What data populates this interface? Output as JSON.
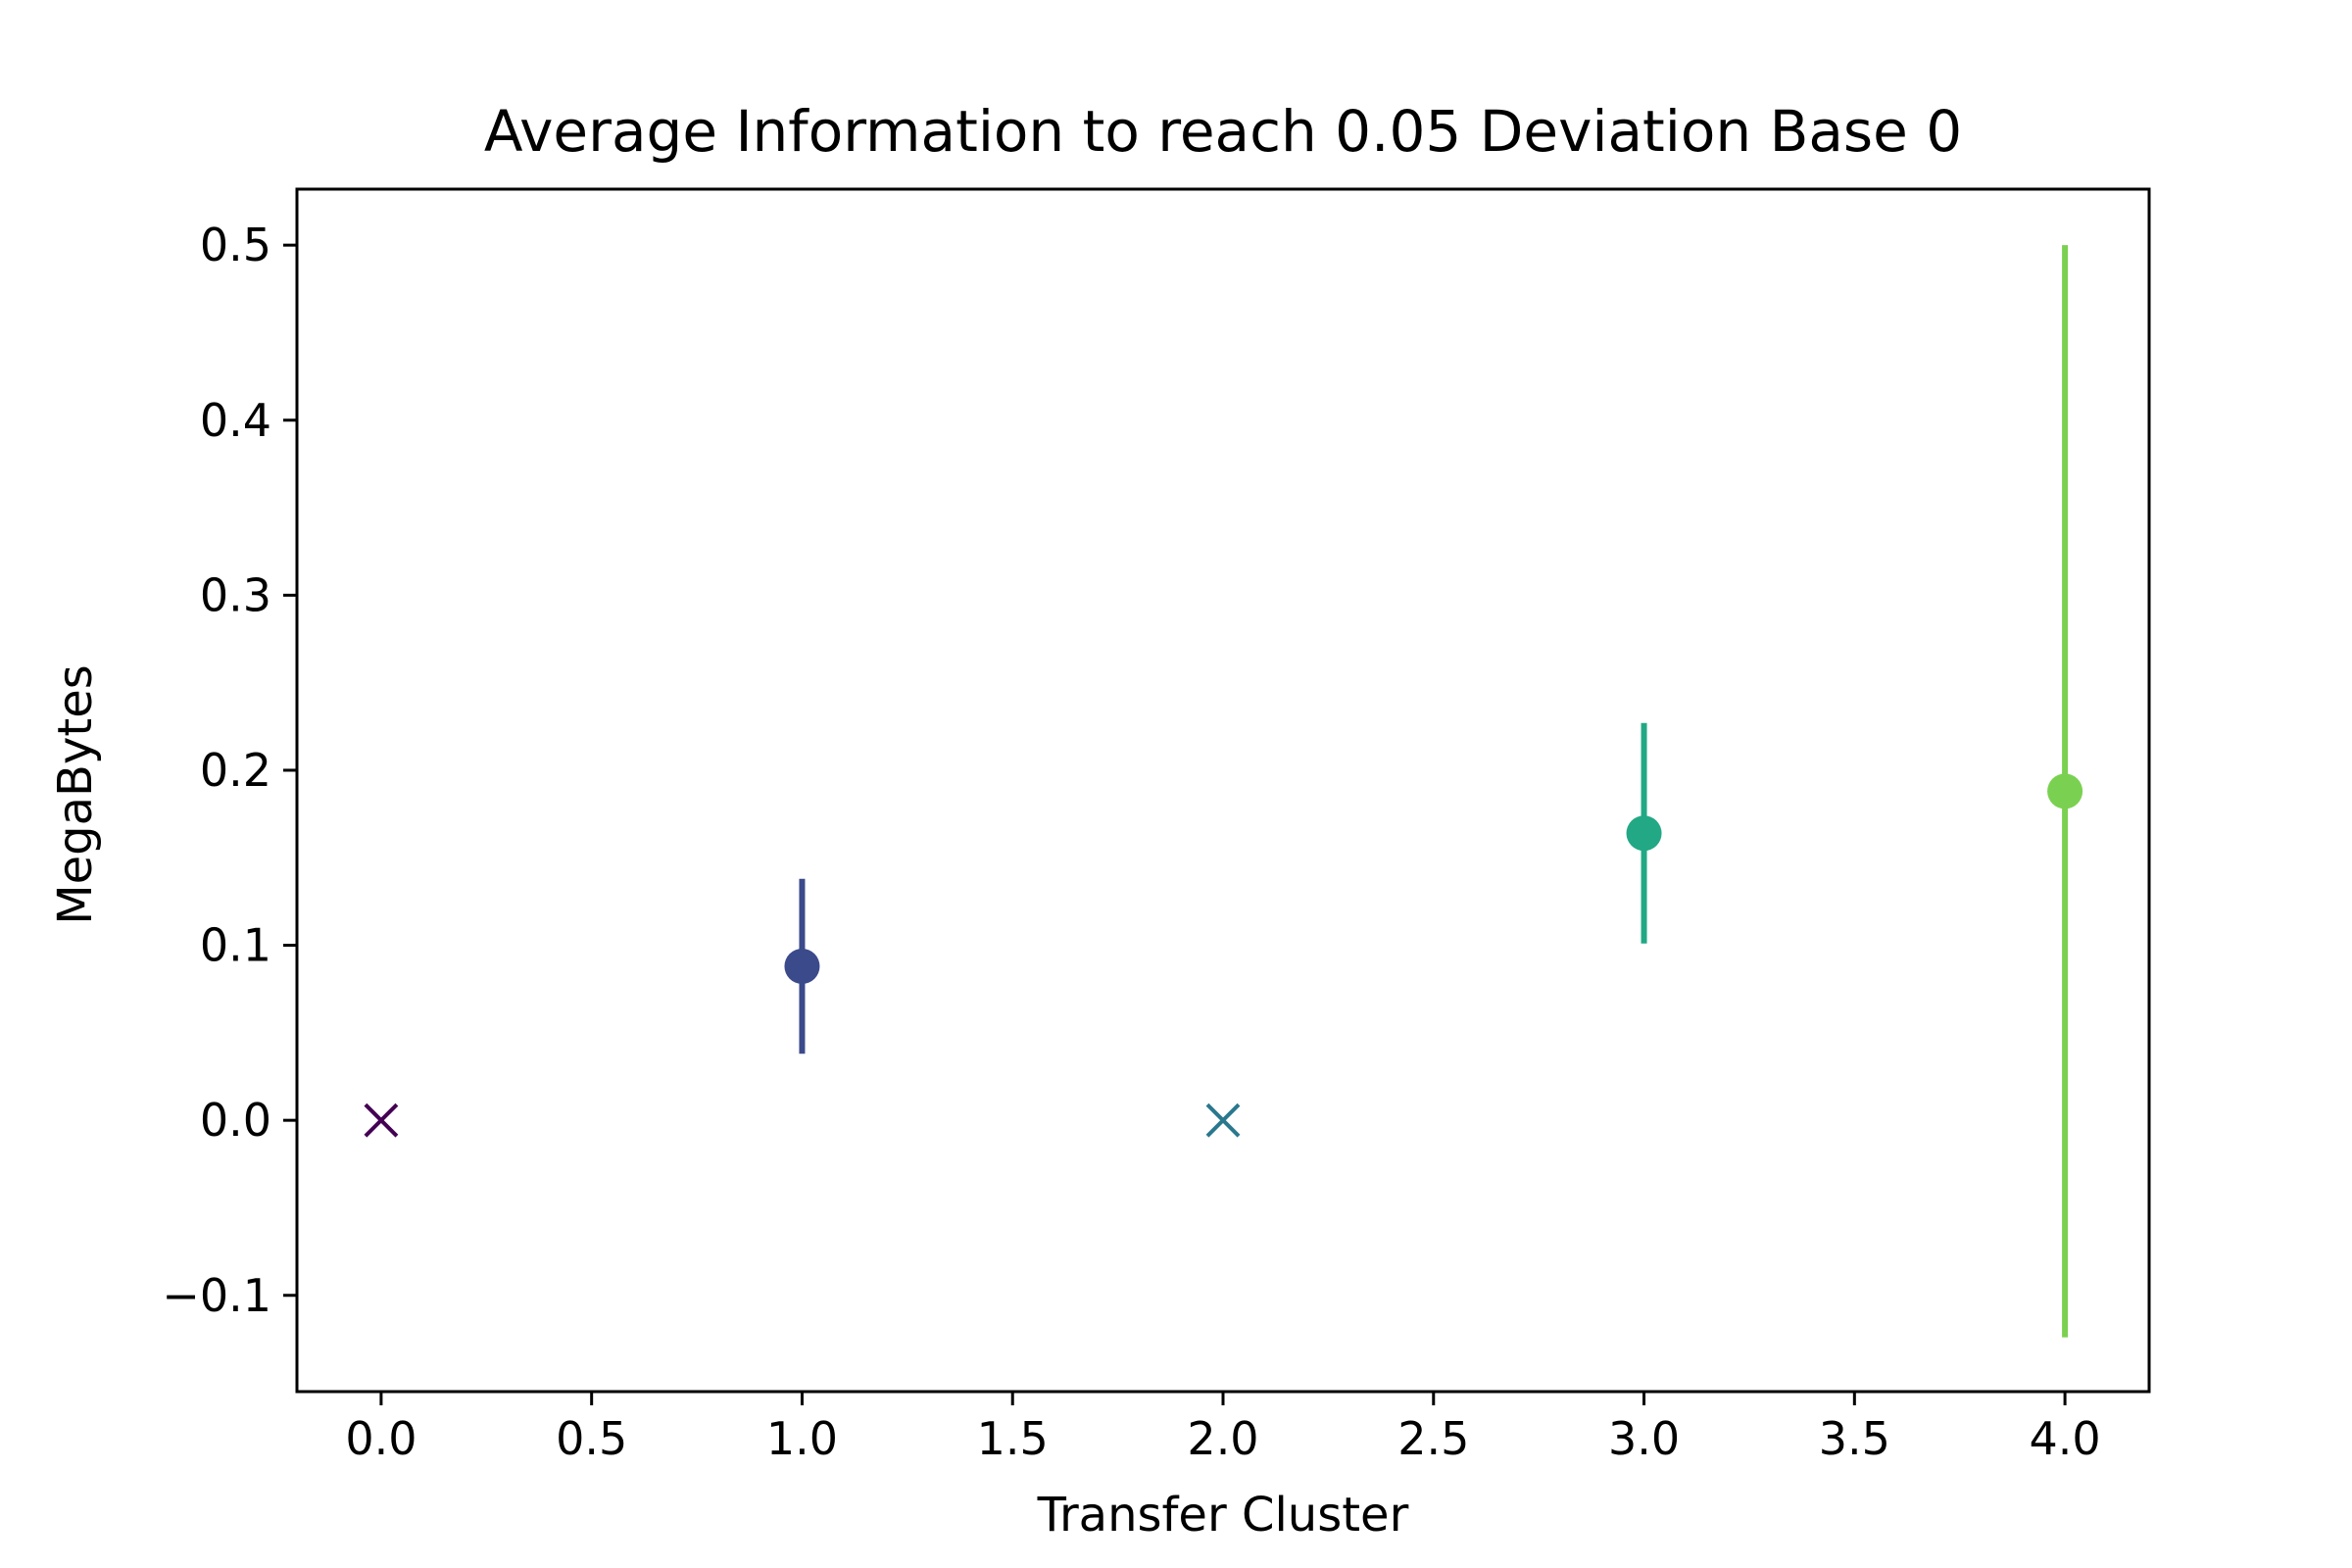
{
  "chart_data": {
    "type": "scatter",
    "title": "Average Information to reach 0.05 Deviation Base 0",
    "xlabel": "Transfer Cluster",
    "ylabel": "MegaBytes",
    "xlim": [
      -0.2,
      4.2
    ],
    "ylim": [
      -0.155,
      0.532
    ],
    "xticks": [
      0.0,
      0.5,
      1.0,
      1.5,
      2.0,
      2.5,
      3.0,
      3.5,
      4.0
    ],
    "xtick_labels": [
      "0.0",
      "0.5",
      "1.0",
      "1.5",
      "2.0",
      "2.5",
      "3.0",
      "3.5",
      "4.0"
    ],
    "yticks": [
      -0.1,
      0.0,
      0.1,
      0.2,
      0.3,
      0.4,
      0.5
    ],
    "ytick_labels": [
      "−0.1",
      "0.0",
      "0.1",
      "0.2",
      "0.3",
      "0.4",
      "0.5"
    ],
    "grid": false,
    "points": [
      {
        "x": 0,
        "y": 0.0,
        "err_low": null,
        "err_high": null,
        "marker": "x",
        "color": "#440154"
      },
      {
        "x": 1,
        "y": 0.088,
        "err_low": 0.038,
        "err_high": 0.138,
        "marker": "circle",
        "color": "#3b4a8a"
      },
      {
        "x": 2,
        "y": 0.0,
        "err_low": null,
        "err_high": null,
        "marker": "x",
        "color": "#2a788e"
      },
      {
        "x": 3,
        "y": 0.164,
        "err_low": 0.101,
        "err_high": 0.227,
        "marker": "circle",
        "color": "#22a884"
      },
      {
        "x": 4,
        "y": 0.188,
        "err_low": -0.124,
        "err_high": 0.5,
        "marker": "circle",
        "color": "#7ad151"
      }
    ]
  }
}
